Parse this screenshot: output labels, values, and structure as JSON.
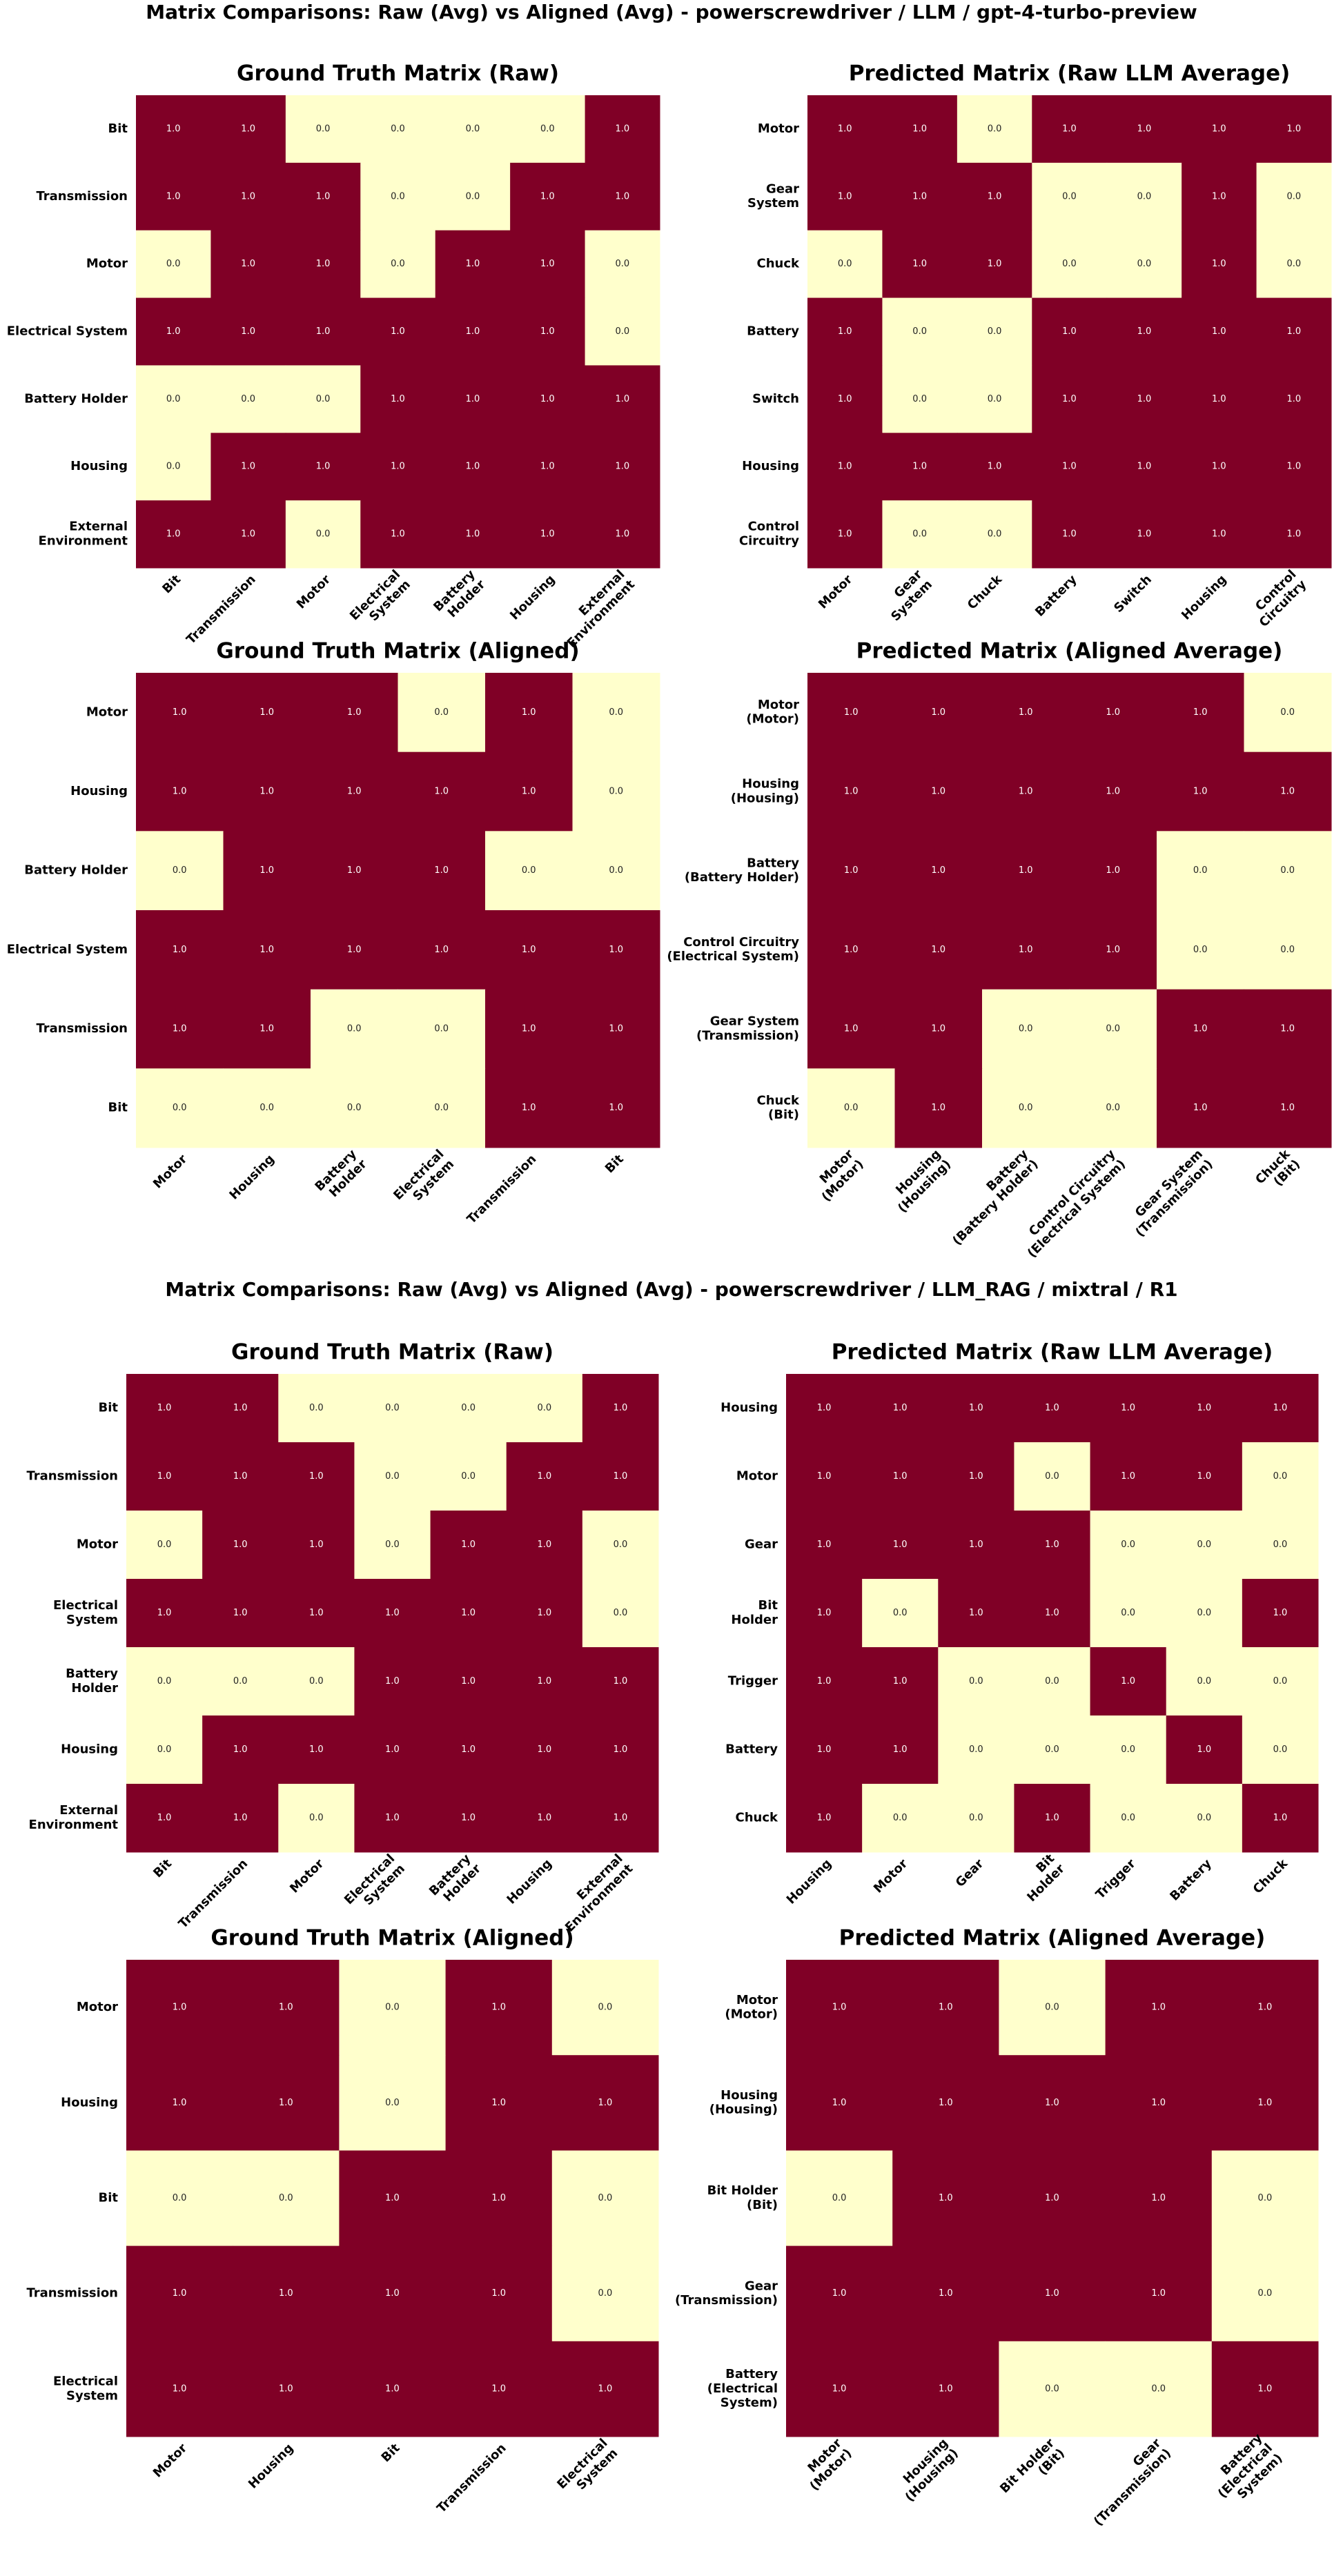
{
  "suptitles": [
    "Matrix Comparisons: Raw (Avg) vs Aligned (Avg) - powerscrewdriver / LLM / gpt-4-turbo-preview",
    "Matrix Comparisons: Raw (Avg) vs Aligned (Avg) - powerscrewdriver / LLM_RAG / mixtral / R1"
  ],
  "chart_data": [
    {
      "type": "heatmap",
      "title": "Ground Truth Matrix (Raw)",
      "color_scale": [
        "#ffffcc",
        "#800026"
      ],
      "clim": [
        0,
        1
      ],
      "y_categories": [
        "Bit",
        "Transmission",
        "Motor",
        "Electrical System",
        "Battery Holder",
        "Housing",
        "External\nEnvironment"
      ],
      "x_categories": [
        "Bit",
        "Transmission",
        "Motor",
        "Electrical\nSystem",
        "Battery\nHolder",
        "Housing",
        "External\nEnvironment"
      ],
      "values": [
        [
          1,
          1,
          0,
          0,
          0,
          0,
          1
        ],
        [
          1,
          1,
          1,
          0,
          0,
          1,
          1
        ],
        [
          0,
          1,
          1,
          0,
          1,
          1,
          0
        ],
        [
          1,
          1,
          1,
          1,
          1,
          1,
          0
        ],
        [
          0,
          0,
          0,
          1,
          1,
          1,
          1
        ],
        [
          0,
          1,
          1,
          1,
          1,
          1,
          1
        ],
        [
          1,
          1,
          0,
          1,
          1,
          1,
          1
        ]
      ],
      "value_labels": [
        [
          "1.0",
          "1.0",
          "0.0",
          "0.0",
          "0.0",
          "0.0",
          "1.0"
        ],
        [
          "1.0",
          "1.0",
          "1.0",
          "0.0",
          "0.0",
          "1.0",
          "1.0"
        ],
        [
          "0.0",
          "1.0",
          "1.0",
          "0.0",
          "1.0",
          "1.0",
          "0.0"
        ],
        [
          "1.0",
          "1.0",
          "1.0",
          "1.0",
          "1.0",
          "1.0",
          "0.0"
        ],
        [
          "0.0",
          "0.0",
          "0.0",
          "1.0",
          "1.0",
          "1.0",
          "1.0"
        ],
        [
          "0.0",
          "1.0",
          "1.0",
          "1.0",
          "1.0",
          "1.0",
          "1.0"
        ],
        [
          "1.0",
          "1.0",
          "0.0",
          "1.0",
          "1.0",
          "1.0",
          "1.0"
        ]
      ]
    },
    {
      "type": "heatmap",
      "title": "Predicted Matrix (Raw LLM Average)",
      "color_scale": [
        "#ffffcc",
        "#800026"
      ],
      "clim": [
        0,
        1
      ],
      "y_categories": [
        "Motor",
        "Gear\nSystem",
        "Chuck",
        "Battery",
        "Switch",
        "Housing",
        "Control\nCircuitry"
      ],
      "x_categories": [
        "Motor",
        "Gear\nSystem",
        "Chuck",
        "Battery",
        "Switch",
        "Housing",
        "Control\nCircuitry"
      ],
      "values": [
        [
          1,
          1,
          0,
          1,
          1,
          1,
          1
        ],
        [
          1,
          1,
          1,
          0,
          0,
          1,
          0
        ],
        [
          0,
          1,
          1,
          0,
          0,
          1,
          0
        ],
        [
          1,
          0,
          0,
          1,
          1,
          1,
          1
        ],
        [
          1,
          0,
          0,
          1,
          1,
          1,
          1
        ],
        [
          1,
          1,
          1,
          1,
          1,
          1,
          1
        ],
        [
          1,
          0,
          0,
          1,
          1,
          1,
          1
        ]
      ],
      "value_labels": [
        [
          "1.0",
          "1.0",
          "0.0",
          "1.0",
          "1.0",
          "1.0",
          "1.0"
        ],
        [
          "1.0",
          "1.0",
          "1.0",
          "0.0",
          "0.0",
          "1.0",
          "0.0"
        ],
        [
          "0.0",
          "1.0",
          "1.0",
          "0.0",
          "0.0",
          "1.0",
          "0.0"
        ],
        [
          "1.0",
          "0.0",
          "0.0",
          "1.0",
          "1.0",
          "1.0",
          "1.0"
        ],
        [
          "1.0",
          "0.0",
          "0.0",
          "1.0",
          "1.0",
          "1.0",
          "1.0"
        ],
        [
          "1.0",
          "1.0",
          "1.0",
          "1.0",
          "1.0",
          "1.0",
          "1.0"
        ],
        [
          "1.0",
          "0.0",
          "0.0",
          "1.0",
          "1.0",
          "1.0",
          "1.0"
        ]
      ]
    },
    {
      "type": "heatmap",
      "title": "Ground Truth Matrix (Aligned)",
      "color_scale": [
        "#ffffcc",
        "#800026"
      ],
      "clim": [
        0,
        1
      ],
      "y_categories": [
        "Motor",
        "Housing",
        "Battery Holder",
        "Electrical System",
        "Transmission",
        "Bit"
      ],
      "x_categories": [
        "Motor",
        "Housing",
        "Battery\nHolder",
        "Electrical\nSystem",
        "Transmission",
        "Bit"
      ],
      "values": [
        [
          1,
          1,
          1,
          0,
          1,
          0
        ],
        [
          1,
          1,
          1,
          1,
          1,
          0
        ],
        [
          0,
          1,
          1,
          1,
          0,
          0
        ],
        [
          1,
          1,
          1,
          1,
          1,
          1
        ],
        [
          1,
          1,
          0,
          0,
          1,
          1
        ],
        [
          0,
          0,
          0,
          0,
          1,
          1
        ]
      ],
      "value_labels": [
        [
          "1.0",
          "1.0",
          "1.0",
          "0.0",
          "1.0",
          "0.0"
        ],
        [
          "1.0",
          "1.0",
          "1.0",
          "1.0",
          "1.0",
          "0.0"
        ],
        [
          "0.0",
          "1.0",
          "1.0",
          "1.0",
          "0.0",
          "0.0"
        ],
        [
          "1.0",
          "1.0",
          "1.0",
          "1.0",
          "1.0",
          "1.0"
        ],
        [
          "1.0",
          "1.0",
          "0.0",
          "0.0",
          "1.0",
          "1.0"
        ],
        [
          "0.0",
          "0.0",
          "0.0",
          "0.0",
          "1.0",
          "1.0"
        ]
      ]
    },
    {
      "type": "heatmap",
      "title": "Predicted Matrix (Aligned Average)",
      "color_scale": [
        "#ffffcc",
        "#800026"
      ],
      "clim": [
        0,
        1
      ],
      "y_categories": [
        "Motor\n(Motor)",
        "Housing\n(Housing)",
        "Battery\n(Battery Holder)",
        "Control Circuitry\n(Electrical System)",
        "Gear System\n(Transmission)",
        "Chuck\n(Bit)"
      ],
      "x_categories": [
        "Motor\n(Motor)",
        "Housing\n(Housing)",
        "Battery\n(Battery Holder)",
        "Control Circuitry\n(Electrical System)",
        "Gear System\n(Transmission)",
        "Chuck\n(Bit)"
      ],
      "values": [
        [
          1,
          1,
          1,
          1,
          1,
          0
        ],
        [
          1,
          1,
          1,
          1,
          1,
          1
        ],
        [
          1,
          1,
          1,
          1,
          0,
          0
        ],
        [
          1,
          1,
          1,
          1,
          0,
          0
        ],
        [
          1,
          1,
          0,
          0,
          1,
          1
        ],
        [
          0,
          1,
          0,
          0,
          1,
          1
        ]
      ],
      "value_labels": [
        [
          "1.0",
          "1.0",
          "1.0",
          "1.0",
          "1.0",
          "0.0"
        ],
        [
          "1.0",
          "1.0",
          "1.0",
          "1.0",
          "1.0",
          "1.0"
        ],
        [
          "1.0",
          "1.0",
          "1.0",
          "1.0",
          "0.0",
          "0.0"
        ],
        [
          "1.0",
          "1.0",
          "1.0",
          "1.0",
          "0.0",
          "0.0"
        ],
        [
          "1.0",
          "1.0",
          "0.0",
          "0.0",
          "1.0",
          "1.0"
        ],
        [
          "0.0",
          "1.0",
          "0.0",
          "0.0",
          "1.0",
          "1.0"
        ]
      ]
    },
    {
      "type": "heatmap",
      "title": "Ground Truth Matrix (Raw)",
      "color_scale": [
        "#ffffcc",
        "#800026"
      ],
      "clim": [
        0,
        1
      ],
      "y_categories": [
        "Bit",
        "Transmission",
        "Motor",
        "Electrical\nSystem",
        "Battery\nHolder",
        "Housing",
        "External\nEnvironment"
      ],
      "x_categories": [
        "Bit",
        "Transmission",
        "Motor",
        "Electrical\nSystem",
        "Battery\nHolder",
        "Housing",
        "External\nEnvironment"
      ],
      "values": [
        [
          1,
          1,
          0,
          0,
          0,
          0,
          1
        ],
        [
          1,
          1,
          1,
          0,
          0,
          1,
          1
        ],
        [
          0,
          1,
          1,
          0,
          1,
          1,
          0
        ],
        [
          1,
          1,
          1,
          1,
          1,
          1,
          0
        ],
        [
          0,
          0,
          0,
          1,
          1,
          1,
          1
        ],
        [
          0,
          1,
          1,
          1,
          1,
          1,
          1
        ],
        [
          1,
          1,
          0,
          1,
          1,
          1,
          1
        ]
      ],
      "value_labels": [
        [
          "1.0",
          "1.0",
          "0.0",
          "0.0",
          "0.0",
          "0.0",
          "1.0"
        ],
        [
          "1.0",
          "1.0",
          "1.0",
          "0.0",
          "0.0",
          "1.0",
          "1.0"
        ],
        [
          "0.0",
          "1.0",
          "1.0",
          "0.0",
          "1.0",
          "1.0",
          "0.0"
        ],
        [
          "1.0",
          "1.0",
          "1.0",
          "1.0",
          "1.0",
          "1.0",
          "0.0"
        ],
        [
          "0.0",
          "0.0",
          "0.0",
          "1.0",
          "1.0",
          "1.0",
          "1.0"
        ],
        [
          "0.0",
          "1.0",
          "1.0",
          "1.0",
          "1.0",
          "1.0",
          "1.0"
        ],
        [
          "1.0",
          "1.0",
          "0.0",
          "1.0",
          "1.0",
          "1.0",
          "1.0"
        ]
      ]
    },
    {
      "type": "heatmap",
      "title": "Predicted Matrix (Raw LLM Average)",
      "color_scale": [
        "#ffffcc",
        "#800026"
      ],
      "clim": [
        0,
        1
      ],
      "y_categories": [
        "Housing",
        "Motor",
        "Gear",
        "Bit\nHolder",
        "Trigger",
        "Battery",
        "Chuck"
      ],
      "x_categories": [
        "Housing",
        "Motor",
        "Gear",
        "Bit\nHolder",
        "Trigger",
        "Battery",
        "Chuck"
      ],
      "values": [
        [
          1,
          1,
          1,
          1,
          1,
          1,
          1
        ],
        [
          1,
          1,
          1,
          0,
          1,
          1,
          0
        ],
        [
          1,
          1,
          1,
          1,
          0,
          0,
          0
        ],
        [
          1,
          0,
          1,
          1,
          0,
          0,
          1
        ],
        [
          1,
          1,
          0,
          0,
          1,
          0,
          0
        ],
        [
          1,
          1,
          0,
          0,
          0,
          1,
          0
        ],
        [
          1,
          0,
          0,
          1,
          0,
          0,
          1
        ]
      ],
      "value_labels": [
        [
          "1.0",
          "1.0",
          "1.0",
          "1.0",
          "1.0",
          "1.0",
          "1.0"
        ],
        [
          "1.0",
          "1.0",
          "1.0",
          "0.0",
          "1.0",
          "1.0",
          "0.0"
        ],
        [
          "1.0",
          "1.0",
          "1.0",
          "1.0",
          "0.0",
          "0.0",
          "0.0"
        ],
        [
          "1.0",
          "0.0",
          "1.0",
          "1.0",
          "0.0",
          "0.0",
          "1.0"
        ],
        [
          "1.0",
          "1.0",
          "0.0",
          "0.0",
          "1.0",
          "0.0",
          "0.0"
        ],
        [
          "1.0",
          "1.0",
          "0.0",
          "0.0",
          "0.0",
          "1.0",
          "0.0"
        ],
        [
          "1.0",
          "0.0",
          "0.0",
          "1.0",
          "0.0",
          "0.0",
          "1.0"
        ]
      ]
    },
    {
      "type": "heatmap",
      "title": "Ground Truth Matrix (Aligned)",
      "color_scale": [
        "#ffffcc",
        "#800026"
      ],
      "clim": [
        0,
        1
      ],
      "y_categories": [
        "Motor",
        "Housing",
        "Bit",
        "Transmission",
        "Electrical\nSystem"
      ],
      "x_categories": [
        "Motor",
        "Housing",
        "Bit",
        "Transmission",
        "Electrical\nSystem"
      ],
      "values": [
        [
          1,
          1,
          0,
          1,
          0
        ],
        [
          1,
          1,
          0,
          1,
          1
        ],
        [
          0,
          0,
          1,
          1,
          0
        ],
        [
          1,
          1,
          1,
          1,
          0
        ],
        [
          1,
          1,
          1,
          1,
          1
        ]
      ],
      "value_labels": [
        [
          "1.0",
          "1.0",
          "0.0",
          "1.0",
          "0.0"
        ],
        [
          "1.0",
          "1.0",
          "0.0",
          "1.0",
          "1.0"
        ],
        [
          "0.0",
          "0.0",
          "1.0",
          "1.0",
          "0.0"
        ],
        [
          "1.0",
          "1.0",
          "1.0",
          "1.0",
          "0.0"
        ],
        [
          "1.0",
          "1.0",
          "1.0",
          "1.0",
          "1.0"
        ]
      ]
    },
    {
      "type": "heatmap",
      "title": "Predicted Matrix (Aligned Average)",
      "color_scale": [
        "#ffffcc",
        "#800026"
      ],
      "clim": [
        0,
        1
      ],
      "y_categories": [
        "Motor\n(Motor)",
        "Housing\n(Housing)",
        "Bit Holder\n(Bit)",
        "Gear\n(Transmission)",
        "Battery\n(Electrical\nSystem)"
      ],
      "x_categories": [
        "Motor\n(Motor)",
        "Housing\n(Housing)",
        "Bit Holder\n(Bit)",
        "Gear\n(Transmission)",
        "Battery\n(Electrical\nSystem)"
      ],
      "values": [
        [
          1,
          1,
          0,
          1,
          1
        ],
        [
          1,
          1,
          1,
          1,
          1
        ],
        [
          0,
          1,
          1,
          1,
          0
        ],
        [
          1,
          1,
          1,
          1,
          0
        ],
        [
          1,
          1,
          0,
          0,
          1
        ]
      ],
      "value_labels": [
        [
          "1.0",
          "1.0",
          "0.0",
          "1.0",
          "1.0"
        ],
        [
          "1.0",
          "1.0",
          "1.0",
          "1.0",
          "1.0"
        ],
        [
          "0.0",
          "1.0",
          "1.0",
          "1.0",
          "0.0"
        ],
        [
          "1.0",
          "1.0",
          "1.0",
          "1.0",
          "0.0"
        ],
        [
          "1.0",
          "1.0",
          "0.0",
          "0.0",
          "1.0"
        ]
      ]
    }
  ]
}
